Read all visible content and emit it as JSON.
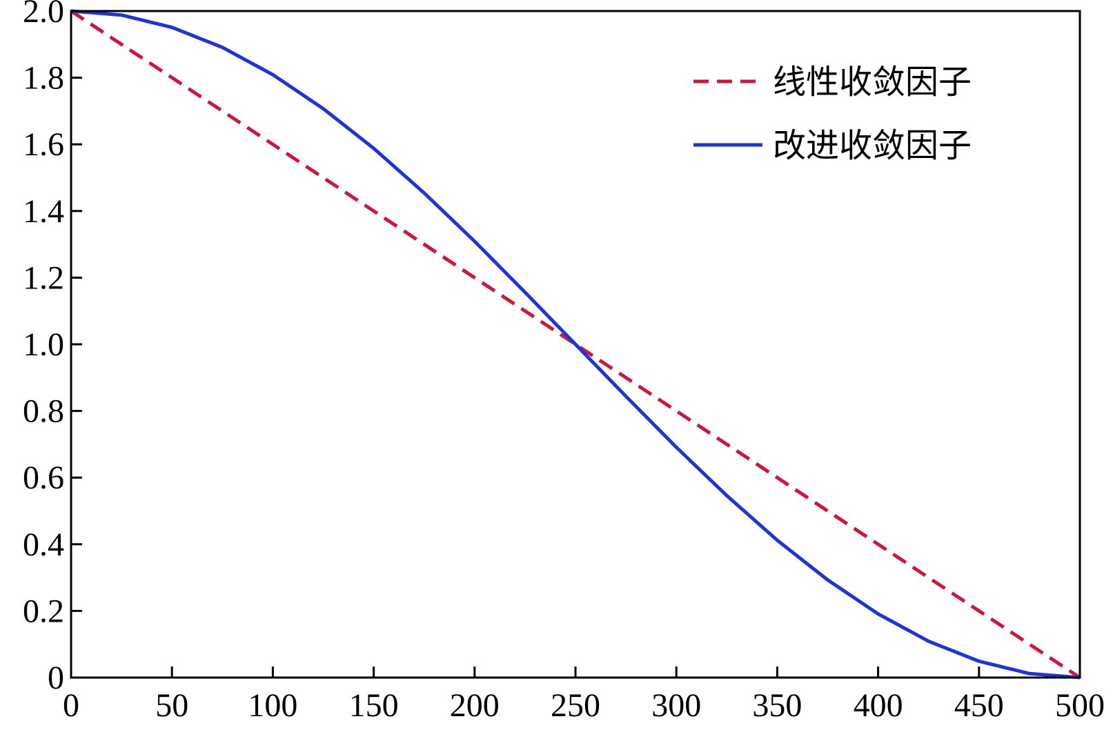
{
  "chart_data": {
    "type": "line",
    "title": "",
    "xlabel": "",
    "ylabel": "",
    "xlim": [
      0,
      500
    ],
    "ylim": [
      0,
      2.0
    ],
    "xticks": [
      0,
      50,
      100,
      150,
      200,
      250,
      300,
      350,
      400,
      450,
      500
    ],
    "xtick_labels": [
      "0",
      "50",
      "100",
      "150",
      "200",
      "250",
      "300",
      "350",
      "400",
      "450",
      "500"
    ],
    "yticks": [
      0,
      0.2,
      0.4,
      0.6,
      0.8,
      1.0,
      1.2,
      1.4,
      1.6,
      1.8,
      2.0
    ],
    "ytick_labels": [
      "0",
      "0.2",
      "0.4",
      "0.6",
      "0.8",
      "1.0",
      "1.2",
      "1.4",
      "1.6",
      "1.8",
      "2.0"
    ],
    "grid": false,
    "legend_position": "top-right",
    "series": [
      {
        "name": "线性收敛因子",
        "color": "#d2143c",
        "style": "dashed",
        "x": [
          0,
          500
        ],
        "y": [
          2.0,
          0.0
        ]
      },
      {
        "name": "改进收敛因子",
        "color": "#1c34d8",
        "style": "solid",
        "x": [
          0,
          25,
          50,
          75,
          100,
          125,
          150,
          175,
          200,
          225,
          250,
          275,
          300,
          325,
          350,
          375,
          400,
          425,
          450,
          475,
          500
        ],
        "y": [
          2.0,
          1.988,
          1.951,
          1.891,
          1.809,
          1.707,
          1.588,
          1.454,
          1.309,
          1.156,
          1.0,
          0.844,
          0.691,
          0.546,
          0.412,
          0.293,
          0.191,
          0.109,
          0.049,
          0.012,
          0.0
        ]
      }
    ]
  }
}
